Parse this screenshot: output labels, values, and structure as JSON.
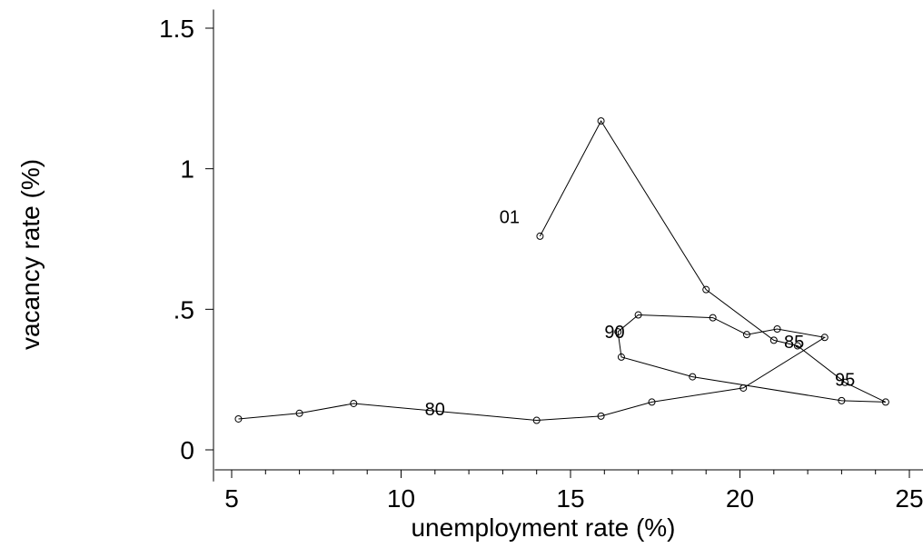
{
  "chart_data": {
    "type": "line",
    "xlabel": "unemployment rate (%)",
    "ylabel": "vacancy rate (%)",
    "xlim": [
      4.5,
      25.5
    ],
    "ylim": [
      -0.08,
      1.55
    ],
    "xticks": [
      5,
      10,
      15,
      20,
      25
    ],
    "xtick_labels": [
      "5",
      "10",
      "15",
      "20",
      "25"
    ],
    "xminor": [
      6,
      7,
      8,
      9,
      11,
      12,
      13,
      14,
      16,
      17,
      18,
      19,
      21,
      22,
      23,
      24
    ],
    "yticks": [
      0,
      0.5,
      1,
      1.5
    ],
    "ytick_labels": [
      "0",
      ".5",
      "1",
      "1.5"
    ],
    "grid": false,
    "series": [
      {
        "x": [
          5.2,
          7.0,
          8.6,
          14.0,
          15.9,
          17.4,
          20.1,
          22.5,
          21.1,
          20.2,
          19.2,
          17.0,
          16.4,
          16.5,
          18.6,
          23.0,
          24.3,
          23.1,
          21.7,
          21.0,
          19.0,
          15.9,
          14.1
        ],
        "y": [
          0.11,
          0.13,
          0.165,
          0.105,
          0.12,
          0.17,
          0.22,
          0.4,
          0.43,
          0.41,
          0.47,
          0.48,
          0.42,
          0.33,
          0.26,
          0.175,
          0.17,
          0.24,
          0.37,
          0.39,
          0.57,
          1.17,
          0.76
        ]
      }
    ],
    "annotations": [
      {
        "text": "80",
        "x": 11.0,
        "y": 0.145
      },
      {
        "text": "85",
        "x": 21.6,
        "y": 0.385
      },
      {
        "text": "90",
        "x": 16.3,
        "y": 0.42
      },
      {
        "text": "95",
        "x": 23.1,
        "y": 0.25
      },
      {
        "text": "01",
        "x": 13.2,
        "y": 0.83
      }
    ]
  }
}
